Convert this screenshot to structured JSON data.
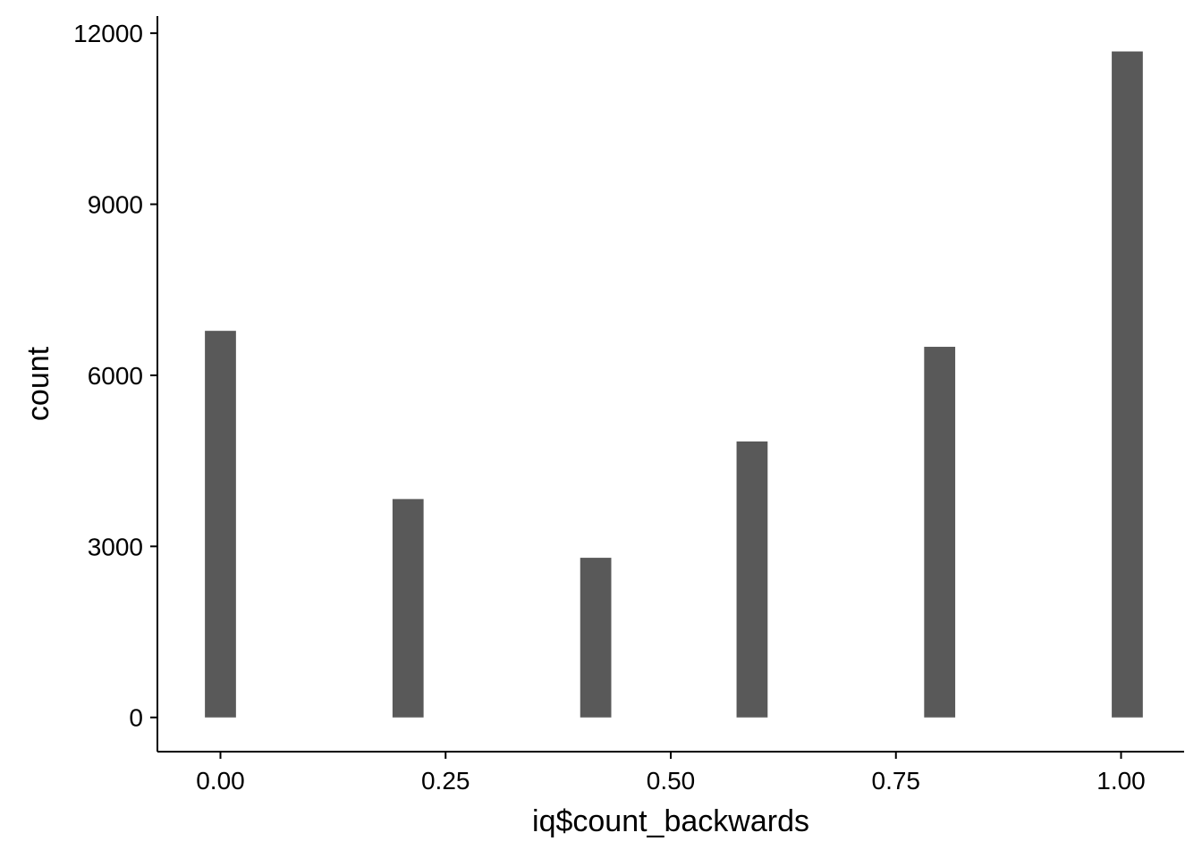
{
  "chart_data": {
    "type": "bar",
    "title": "",
    "xlabel": "iq$count_backwards",
    "ylabel": "count",
    "x": [
      0.0,
      0.2083,
      0.4167,
      0.5903,
      0.7986,
      1.0069
    ],
    "values": [
      6780,
      3830,
      2800,
      4840,
      6500,
      11680
    ],
    "xlim": [
      -0.07,
      1.07
    ],
    "ylim": [
      -600,
      12300
    ],
    "xticks": [
      0.0,
      0.25,
      0.5,
      0.75,
      1.0
    ],
    "xtick_labels": [
      "0.00",
      "0.25",
      "0.50",
      "0.75",
      "1.00"
    ],
    "yticks": [
      0,
      3000,
      6000,
      9000,
      12000
    ],
    "ytick_labels": [
      "0",
      "3000",
      "6000",
      "9000",
      "12000"
    ],
    "bar_width": 0.0345,
    "bar_color": "#595959",
    "grid": false,
    "legend": "none"
  }
}
